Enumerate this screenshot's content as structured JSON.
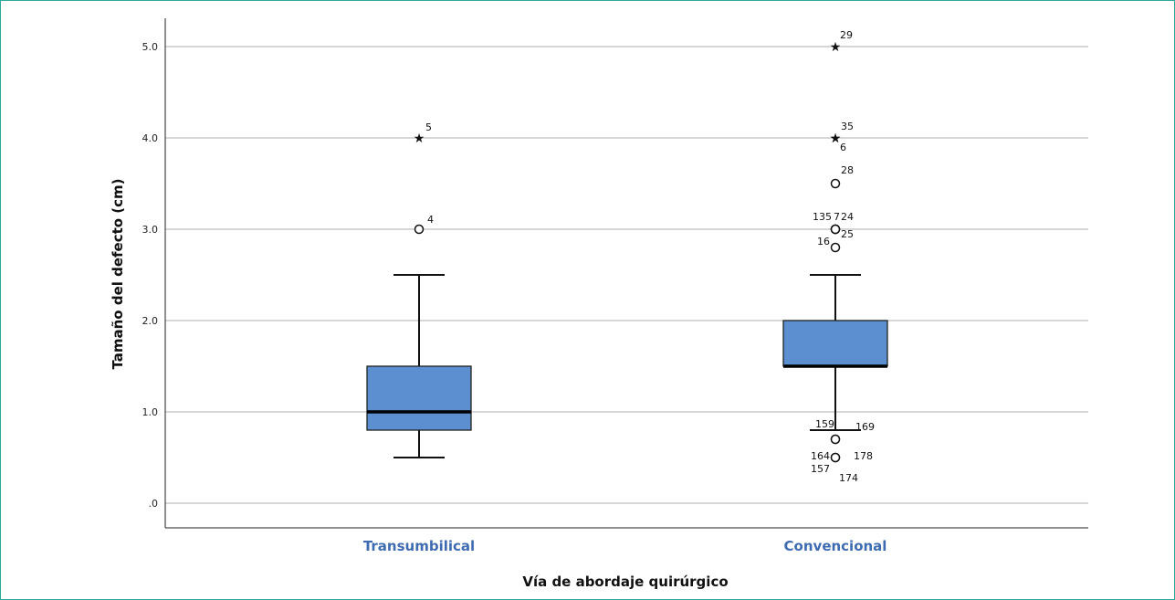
{
  "chart_data": {
    "type": "boxplot",
    "xlabel": "Vía de abordaje quirúrgico",
    "ylabel": "Tamaño del defecto (cm)",
    "ylim": [
      -0.2,
      5.3
    ],
    "yticks": [
      {
        "value": 0,
        "label": ".0"
      },
      {
        "value": 1,
        "label": "1.0"
      },
      {
        "value": 2,
        "label": "2.0"
      },
      {
        "value": 3,
        "label": "3.0"
      },
      {
        "value": 4,
        "label": "4.0"
      },
      {
        "value": 5,
        "label": "5.0"
      }
    ],
    "grid": true,
    "categories": [
      "Transumbilical",
      "Convencional"
    ],
    "boxes": [
      {
        "category": "Transumbilical",
        "whisker_low": 0.5,
        "q1": 0.8,
        "median": 1.0,
        "q3": 1.5,
        "whisker_high": 2.5,
        "outliers": [
          {
            "value": 3.0,
            "marker": "circle",
            "label": "4"
          },
          {
            "value": 4.0,
            "marker": "star",
            "label": "5"
          }
        ]
      },
      {
        "category": "Convencional",
        "whisker_low": 0.8,
        "q1": 1.5,
        "median": 1.5,
        "q3": 2.0,
        "whisker_high": 2.5,
        "outliers": [
          {
            "value": 0.5,
            "marker": "circle",
            "label": "157"
          },
          {
            "value": 0.5,
            "marker": "circle",
            "label": "174"
          },
          {
            "value": 0.7,
            "marker": "circle",
            "label": "164"
          },
          {
            "value": 0.7,
            "marker": "circle",
            "label": "178"
          },
          {
            "value": 0.8,
            "marker": "none",
            "label": "159"
          },
          {
            "value": 0.8,
            "marker": "none",
            "label": "169"
          },
          {
            "value": 2.8,
            "marker": "circle",
            "label": "16"
          },
          {
            "value": 3.0,
            "marker": "circle",
            "label": "135"
          },
          {
            "value": 3.0,
            "marker": "circle",
            "label": "7"
          },
          {
            "value": 3.0,
            "marker": "circle",
            "label": "24"
          },
          {
            "value": 3.0,
            "marker": "circle",
            "label": "25"
          },
          {
            "value": 3.5,
            "marker": "circle",
            "label": "28"
          },
          {
            "value": 4.0,
            "marker": "star",
            "label": "35"
          },
          {
            "value": 4.0,
            "marker": "star",
            "label": "6"
          },
          {
            "value": 5.0,
            "marker": "star",
            "label": "29"
          }
        ]
      }
    ],
    "colors": {
      "box_fill": "#5b8fcf",
      "box_stroke": "#222222",
      "grid": "#bdbdbd",
      "category_label": "#3f6cb0",
      "frame": "#2aa99a"
    }
  }
}
